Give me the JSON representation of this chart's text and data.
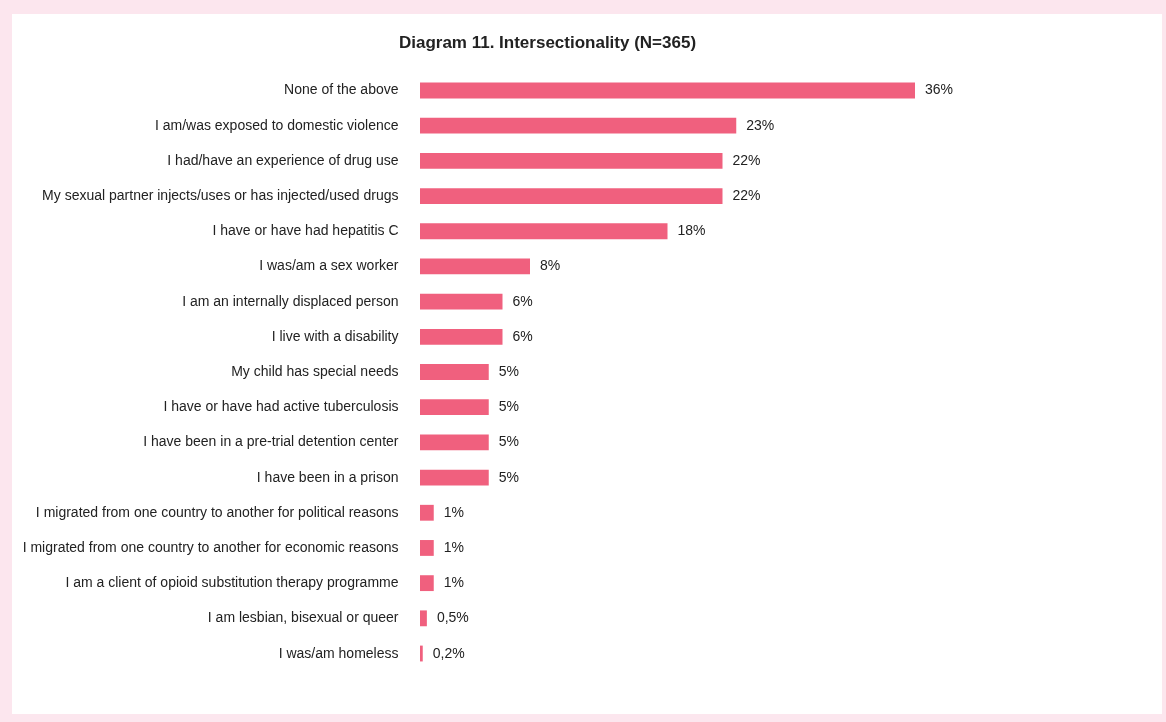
{
  "chart_data": {
    "type": "bar",
    "orientation": "horizontal",
    "title": "Diagram 11. Intersectionality  (N=365)",
    "categories": [
      "None of the above",
      "I am/was exposed to domestic violence",
      "I had/have an experience of drug use",
      "My sexual partner injects/uses or has injected/used drugs",
      "I have or have had hepatitis C",
      "I was/am a sex worker",
      "I am an internally displaced person",
      "I live with a disability",
      "My child has special needs",
      "I have or have had active tuberculosis",
      "I have been in a pre-trial detention center",
      "I have been in a prison",
      "I migrated from one country to another for political reasons",
      "I migrated from one country to another for economic reasons",
      "I am a client of opioid substitution therapy programme",
      "I am lesbian, bisexual or queer",
      "I was/am homeless"
    ],
    "values": [
      36,
      23,
      22,
      22,
      18,
      8,
      6,
      6,
      5,
      5,
      5,
      5,
      1,
      1,
      1,
      0.5,
      0.2
    ],
    "value_labels": [
      "36%",
      "23%",
      "22%",
      "22%",
      "18%",
      "8%",
      "6%",
      "6%",
      "5%",
      "5%",
      "5%",
      "5%",
      "1%",
      "1%",
      "1%",
      "0,5%",
      "0,2%"
    ],
    "color": "#f0607e"
  }
}
